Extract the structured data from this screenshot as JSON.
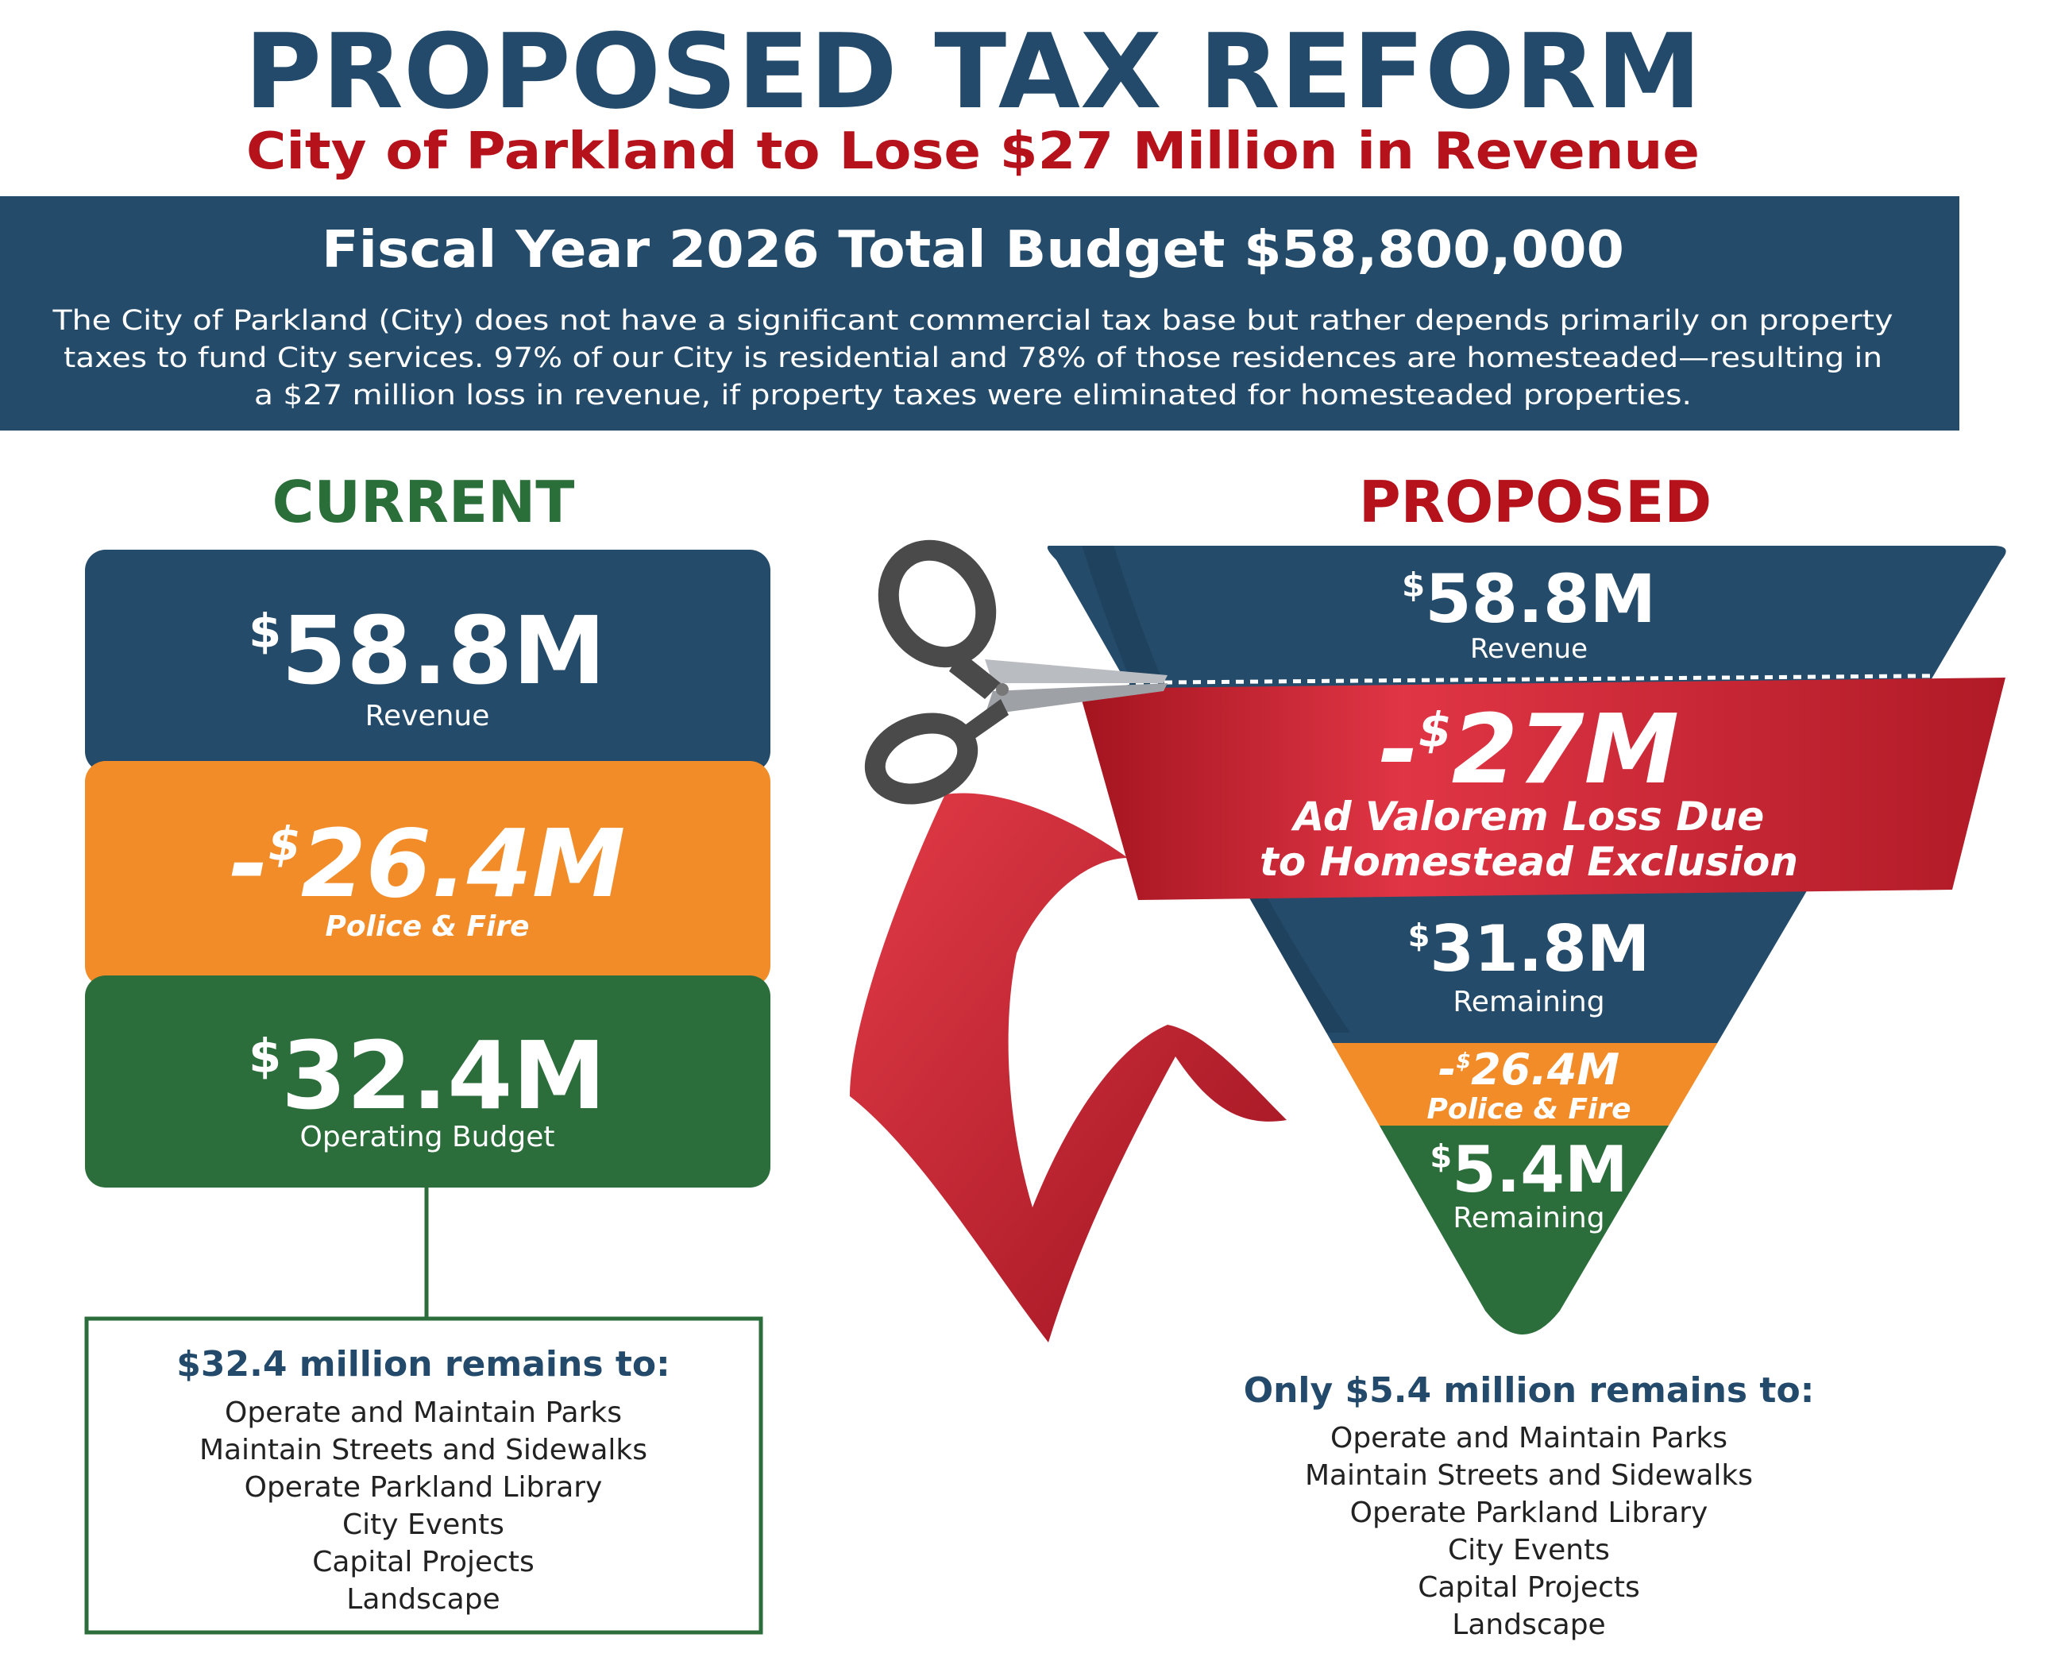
{
  "header": {
    "title": "PROPOSED TAX REFORM",
    "subtitle": "City of Parkland to Lose $27 Million in Revenue"
  },
  "banner": {
    "title": "Fiscal Year 2026 Total Budget $58,800,000",
    "text": [
      "The City of Parkland (City) does not have a significant commercial tax base but rather depends primarily on property",
      "taxes to fund City services. 97% of our City is residential and 78% of those residences are homesteaded—resulting in",
      "a $27 million loss in revenue, if property taxes were eliminated for homesteaded properties."
    ]
  },
  "current": {
    "heading": "CURRENT",
    "blocks": [
      {
        "figure": {
          "currency": "$",
          "amount": "58.8M"
        },
        "label": "Revenue"
      },
      {
        "figure": {
          "sign": "-",
          "currency": "$",
          "amount": "26.4M"
        },
        "label": "Police & Fire"
      },
      {
        "figure": {
          "currency": "$",
          "amount": "32.4M"
        },
        "label": "Operating Budget"
      }
    ],
    "remains": {
      "heading": "$32.4 million remains to:",
      "items": [
        "Operate and Maintain Parks",
        "Maintain Streets and Sidewalks",
        "Operate Parkland Library",
        "City Events",
        "Capital Projects",
        "Landscape"
      ]
    }
  },
  "proposed": {
    "heading": "PROPOSED",
    "blocks": [
      {
        "figure": {
          "currency": "$",
          "amount": "58.8M"
        },
        "label": "Revenue"
      },
      {
        "figure": {
          "sign": "-",
          "currency": "$",
          "amount": "27M"
        },
        "label": [
          "Ad Valorem Loss Due",
          "to Homestead Exclusion"
        ]
      },
      {
        "figure": {
          "currency": "$",
          "amount": "31.8M"
        },
        "label": "Remaining"
      },
      {
        "figure": {
          "sign": "-",
          "currency": "$",
          "amount": "26.4M"
        },
        "label": "Police & Fire"
      },
      {
        "figure": {
          "currency": "$",
          "amount": "5.4M"
        },
        "label": "Remaining"
      }
    ],
    "remains": {
      "heading": "Only $5.4 million remains to:",
      "items": [
        "Operate and Maintain Parks",
        "Maintain Streets and Sidewalks",
        "Operate Parkland Library",
        "City Events",
        "Capital Projects",
        "Landscape"
      ]
    }
  }
}
